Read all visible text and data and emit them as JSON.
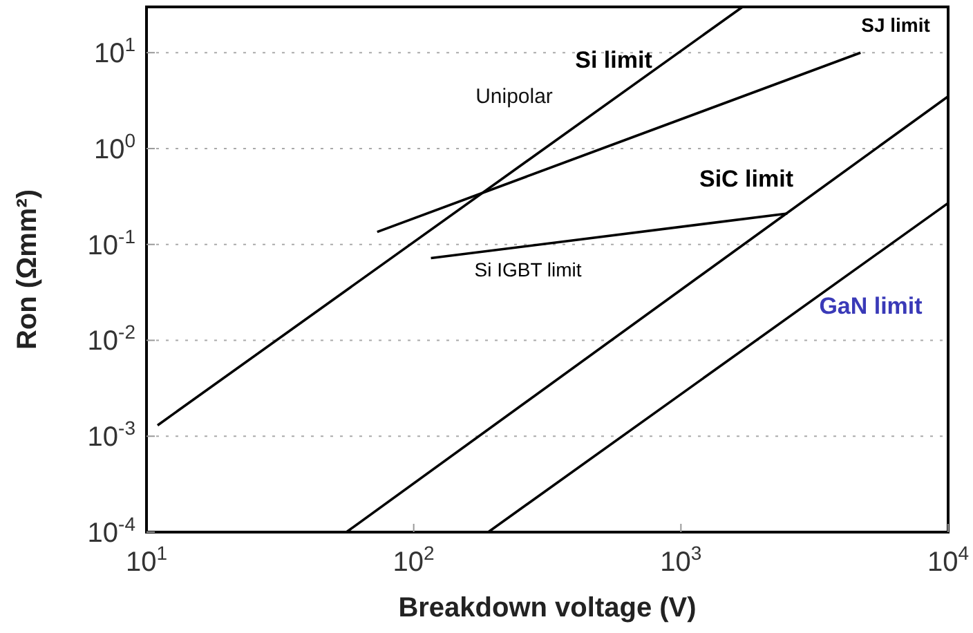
{
  "chart_data": {
    "type": "line",
    "xlabel": "Breakdown voltage (V)",
    "ylabel": "Ron (Ωmm²)",
    "log": "xy",
    "xlim": [
      10,
      10000
    ],
    "ylim": [
      0.0001,
      30
    ],
    "xticks": [
      {
        "value": 10,
        "label": "10$^{1}$"
      },
      {
        "value": 100,
        "label": "10$^{2}$"
      },
      {
        "value": 1000,
        "label": "10$^{3}$"
      },
      {
        "value": 10000,
        "label": "10$^{4}$"
      }
    ],
    "yticks": [
      {
        "value": 0.0001,
        "label": "10$^{-4}$"
      },
      {
        "value": 0.001,
        "label": "10$^{-3}$"
      },
      {
        "value": 0.01,
        "label": "10$^{-2}$"
      },
      {
        "value": 0.1,
        "label": "10$^{-1}$"
      },
      {
        "value": 1,
        "label": "10$^{0}$"
      },
      {
        "value": 10,
        "label": "10$^{1}$"
      }
    ],
    "grid": "y",
    "marker": "none",
    "line_style": "solid",
    "annotations": [
      "Unipolar"
    ],
    "series": [
      {
        "name": "Si limit",
        "color": "#000000",
        "x": [
          11,
          1700
        ],
        "values": [
          0.0013,
          30
        ]
      },
      {
        "name": "SJ limit",
        "color": "#000000",
        "x": [
          73,
          4700
        ],
        "values": [
          0.135,
          10
        ]
      },
      {
        "name": "SiC limit",
        "color": "#000000",
        "x": [
          56,
          10000
        ],
        "values": [
          0.0001,
          3.5
        ]
      },
      {
        "name": "Si IGBT limit",
        "color": "#000000",
        "x": [
          116,
          2500
        ],
        "values": [
          0.072,
          0.21
        ]
      },
      {
        "name": "GaN limit",
        "color": "#000000",
        "x": [
          190,
          10000
        ],
        "values": [
          0.0001,
          0.27
        ]
      }
    ]
  }
}
